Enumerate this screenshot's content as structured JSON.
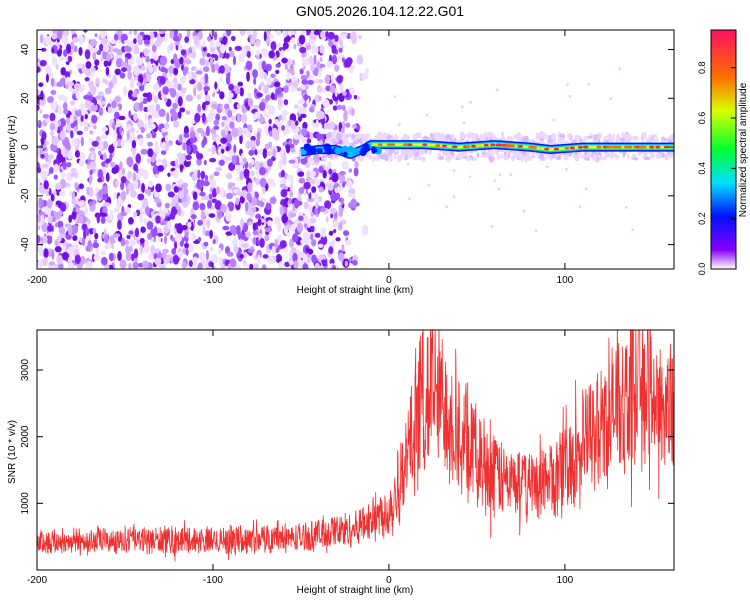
{
  "title": "GN05.2026.104.12.22.G01",
  "chart_data": [
    {
      "type": "heatmap",
      "xlabel": "Height of straight line (km)",
      "ylabel": "Frequency (Hz)",
      "xlim": [
        -200,
        162
      ],
      "ylim": [
        -50,
        48
      ],
      "x_ticks": [
        -200,
        -100,
        0,
        100
      ],
      "y_ticks": [
        -40,
        -20,
        0,
        20,
        40
      ],
      "noise_region_km": [
        -200,
        -12
      ],
      "carrier_track": [
        {
          "x": -50,
          "y": -2
        },
        {
          "x": -40,
          "y": -1
        },
        {
          "x": -30,
          "y": -1
        },
        {
          "x": -22,
          "y": -3
        },
        {
          "x": -15,
          "y": -1
        },
        {
          "x": -10,
          "y": 1
        },
        {
          "x": 0,
          "y": 1
        },
        {
          "x": 20,
          "y": 1
        },
        {
          "x": 40,
          "y": 0
        },
        {
          "x": 60,
          "y": 1
        },
        {
          "x": 80,
          "y": 0
        },
        {
          "x": 92,
          "y": -1
        },
        {
          "x": 110,
          "y": 0
        },
        {
          "x": 140,
          "y": 0
        },
        {
          "x": 162,
          "y": 0
        }
      ],
      "colorbar": {
        "label": "Normalized spectral amplitude",
        "ticks": [
          "0.0",
          "0.2",
          "0.4",
          "0.6",
          "0.8"
        ],
        "range": [
          0,
          0.95
        ]
      }
    },
    {
      "type": "line",
      "xlabel": "Height of straight line (km)",
      "ylabel": "SNR (10 * v/v)",
      "xlim": [
        -200,
        162
      ],
      "ylim": [
        0,
        3600
      ],
      "x_ticks": [
        -200,
        -100,
        0,
        100
      ],
      "y_ticks": [
        1000,
        2000,
        3000
      ],
      "color": "#f03030",
      "envelope": [
        {
          "x": -200,
          "y": 420
        },
        {
          "x": -150,
          "y": 440
        },
        {
          "x": -100,
          "y": 450
        },
        {
          "x": -50,
          "y": 490
        },
        {
          "x": -20,
          "y": 620
        },
        {
          "x": 0,
          "y": 900
        },
        {
          "x": 10,
          "y": 1600
        },
        {
          "x": 18,
          "y": 2550
        },
        {
          "x": 24,
          "y": 2750
        },
        {
          "x": 35,
          "y": 2300
        },
        {
          "x": 50,
          "y": 1700
        },
        {
          "x": 65,
          "y": 1350
        },
        {
          "x": 80,
          "y": 1250
        },
        {
          "x": 95,
          "y": 1400
        },
        {
          "x": 110,
          "y": 1850
        },
        {
          "x": 130,
          "y": 2450
        },
        {
          "x": 145,
          "y": 2850
        },
        {
          "x": 155,
          "y": 2500
        },
        {
          "x": 162,
          "y": 2350
        }
      ]
    }
  ]
}
